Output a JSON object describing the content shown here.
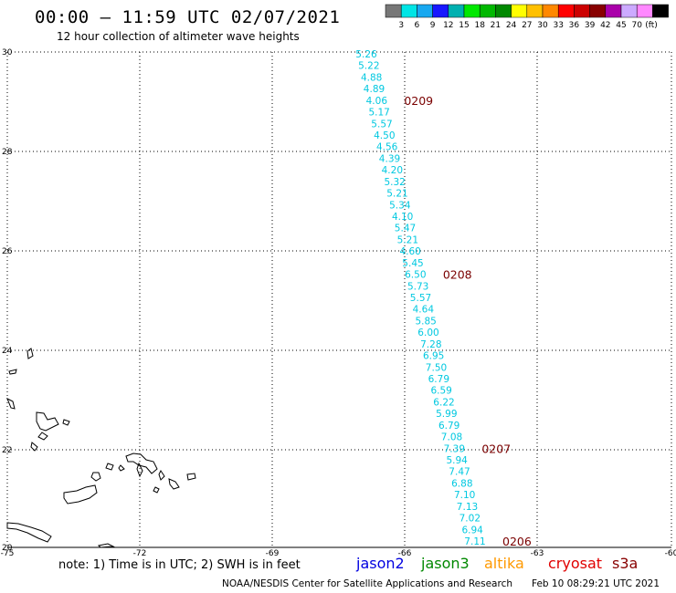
{
  "header": {
    "title": "00:00 – 11:59 UTC 02/07/2021",
    "subtitle": "12 hour collection of altimeter wave heights"
  },
  "legend": {
    "unit": "(ft)",
    "bins": [
      {
        "label": "",
        "color": "#777777"
      },
      {
        "label": "3",
        "color": "#00e5e5"
      },
      {
        "label": "6",
        "color": "#18a8f0"
      },
      {
        "label": "9",
        "color": "#1818ff"
      },
      {
        "label": "12",
        "color": "#00b0b0"
      },
      {
        "label": "15",
        "color": "#00e800"
      },
      {
        "label": "18",
        "color": "#00b800"
      },
      {
        "label": "21",
        "color": "#008800"
      },
      {
        "label": "24",
        "color": "#ffff00"
      },
      {
        "label": "27",
        "color": "#ffc000"
      },
      {
        "label": "30",
        "color": "#ff8800"
      },
      {
        "label": "33",
        "color": "#ff0000"
      },
      {
        "label": "36",
        "color": "#cc0000"
      },
      {
        "label": "39",
        "color": "#880000"
      },
      {
        "label": "42",
        "color": "#aa00aa"
      },
      {
        "label": "45",
        "color": "#ccaaff"
      },
      {
        "label": "70",
        "color": "#ff88ff"
      },
      {
        "label": "",
        "color": "#000000"
      }
    ]
  },
  "axes": {
    "lon_labels": [
      "-75",
      "-72",
      "-69",
      "-66",
      "-63",
      "-60"
    ],
    "lat_labels": [
      "30",
      "28",
      "26",
      "24",
      "22",
      "20"
    ]
  },
  "track": {
    "color": "#00c8e0",
    "values": [
      "5.26",
      "5.22",
      "4.88",
      "4.89",
      "4.06",
      "5.17",
      "5.57",
      "4.50",
      "4.56",
      "4.39",
      "4.20",
      "5.32",
      "5.21",
      "5.34",
      "4.10",
      "5.47",
      "5.21",
      "4.60",
      "5.45",
      "6.50",
      "5.73",
      "5.57",
      "4.64",
      "5.85",
      "6.00",
      "7.28",
      "6.95",
      "7.50",
      "6.79",
      "6.59",
      "6.22",
      "5.99",
      "6.79",
      "7.08",
      "7.39",
      "5.94",
      "7.47",
      "6.88",
      "7.10",
      "7.13",
      "7.02",
      "6.94",
      "7.11"
    ],
    "time_labels": [
      {
        "text": "0209",
        "index": 4
      },
      {
        "text": "0208",
        "index": 19
      },
      {
        "text": "0207",
        "index": 34
      },
      {
        "text": "0206",
        "index": 42
      }
    ],
    "time_color": "#7a0000"
  },
  "footer": {
    "note": "note: 1) Time is in UTC; 2) SWH is in feet",
    "credit_left": "NOAA/NESDIS Center for Satellite Applications and Research",
    "credit_right": "Feb 10 08:29:21 UTC 2021",
    "satellites": [
      {
        "name": "jason2",
        "color": "#0000e0"
      },
      {
        "name": "jason3",
        "color": "#008800"
      },
      {
        "name": "altika",
        "color": "#ff9900"
      },
      {
        "name": "cryosat",
        "color": "#e00000"
      },
      {
        "name": "s3a",
        "color": "#880000"
      }
    ]
  }
}
